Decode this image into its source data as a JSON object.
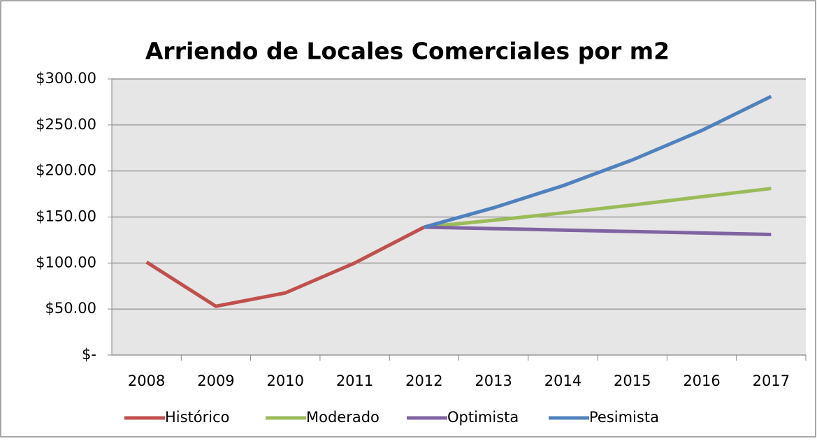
{
  "chart_data": {
    "type": "line",
    "title": "Arriendo de Locales Comerciales por m2",
    "categories": [
      "2008",
      "2009",
      "2010",
      "2011",
      "2012",
      "2013",
      "2014",
      "2015",
      "2016",
      "2017"
    ],
    "series": [
      {
        "name": "Histórico",
        "color": "#c0504d",
        "values": [
          101,
          53,
          67.5,
          100,
          139,
          null,
          null,
          null,
          null,
          null
        ]
      },
      {
        "name": "Moderado",
        "color": "#9bbb59",
        "values": [
          null,
          null,
          null,
          null,
          139,
          146.5,
          154.5,
          163,
          172,
          181
        ]
      },
      {
        "name": "Optimista",
        "color": "#8064a2",
        "values": [
          null,
          null,
          null,
          null,
          139,
          137.4,
          135.8,
          134.2,
          132.6,
          131
        ]
      },
      {
        "name": "Pesimista",
        "color": "#4f81bd",
        "values": [
          null,
          null,
          null,
          null,
          139,
          160,
          184,
          212,
          244,
          281
        ]
      }
    ],
    "ylim": [
      0,
      300
    ],
    "yticks": [
      {
        "value": 0,
        "label": "$-"
      },
      {
        "value": 50,
        "label": "$50.00"
      },
      {
        "value": 100,
        "label": "$100.00"
      },
      {
        "value": 150,
        "label": "$150.00"
      },
      {
        "value": 200,
        "label": "$200.00"
      },
      {
        "value": 250,
        "label": "$250.00"
      },
      {
        "value": 300,
        "label": "$300.00"
      }
    ],
    "grid": true,
    "legend": "bottom"
  }
}
